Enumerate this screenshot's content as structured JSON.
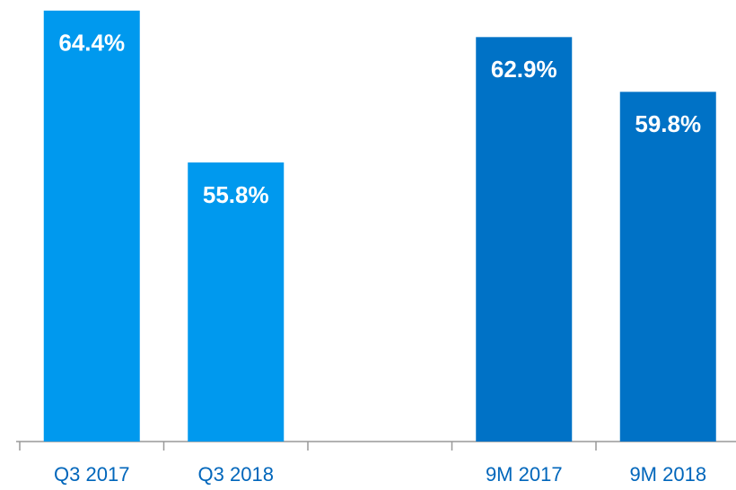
{
  "chart_data": {
    "type": "bar",
    "categories": [
      "Q3 2017",
      "Q3 2018",
      null,
      "9M 2017",
      "9M 2018"
    ],
    "values": [
      64.4,
      55.8,
      null,
      62.9,
      59.8
    ],
    "value_labels": [
      "64.4%",
      "55.8%",
      null,
      "62.9%",
      "59.8%"
    ],
    "colors": [
      "#0099ee",
      "#0099ee",
      null,
      "#0072c6",
      "#0072c6"
    ],
    "ylim": [
      40,
      65
    ]
  }
}
